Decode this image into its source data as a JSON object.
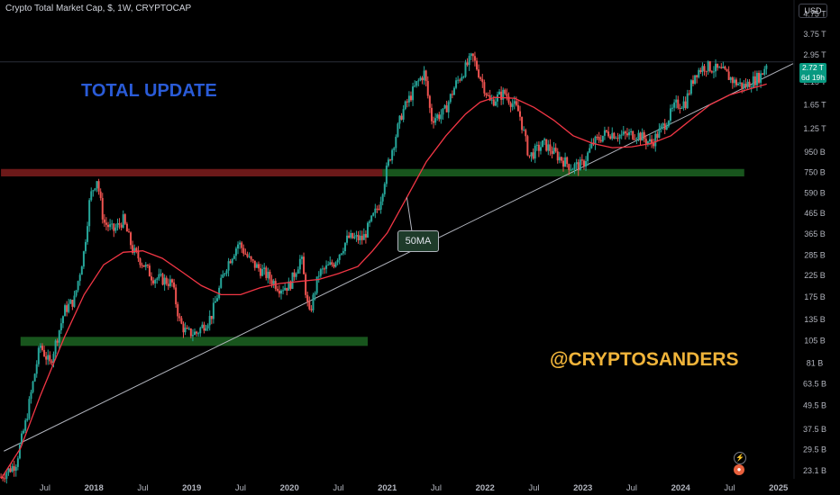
{
  "header": {
    "symbol_line": "Crypto Total Market Cap, $, 1W, CRYPTOCAP",
    "currency": "USD"
  },
  "price_badge": {
    "value": "2.72 T",
    "countdown": "6d 19h"
  },
  "overlays": {
    "title": "TOTAL UPDATE",
    "handle": "@CRYPTOSANDERS",
    "ma_callout": "50MA"
  },
  "icons": [
    "lightning-icon",
    "earnings-icon"
  ],
  "colors": {
    "background": "#000000",
    "up": "#26a69a",
    "down": "#ef5350",
    "ma": "#f23645",
    "support_zone": "#1b5e20",
    "resistance_zone": "#7f1d1d",
    "title": "#2a5bd7",
    "handle": "#f0b43a"
  },
  "chart_data": {
    "type": "candlestick",
    "title": "Crypto Total Market Cap",
    "y_scale": "log",
    "ylim": [
      21000000000,
      5600000000000
    ],
    "y_ticks": [
      {
        "v": 4750000000000,
        "label": "4.75 T"
      },
      {
        "v": 3750000000000,
        "label": "3.75 T"
      },
      {
        "v": 2950000000000,
        "label": "2.95 T"
      },
      {
        "v": 2150000000000,
        "label": "2.15 T"
      },
      {
        "v": 1650000000000,
        "label": "1.65 T"
      },
      {
        "v": 1250000000000,
        "label": "1.25 T"
      },
      {
        "v": 950000000000,
        "label": "950 B"
      },
      {
        "v": 750000000000,
        "label": "750 B"
      },
      {
        "v": 590000000000,
        "label": "590 B"
      },
      {
        "v": 465000000000,
        "label": "465 B"
      },
      {
        "v": 365000000000,
        "label": "365 B"
      },
      {
        "v": 285000000000,
        "label": "285 B"
      },
      {
        "v": 225000000000,
        "label": "225 B"
      },
      {
        "v": 175000000000,
        "label": "175 B"
      },
      {
        "v": 135000000000,
        "label": "135 B"
      },
      {
        "v": 105000000000,
        "label": "105 B"
      },
      {
        "v": 81000000000,
        "label": "81 B"
      },
      {
        "v": 63500000000,
        "label": "63.5 B"
      },
      {
        "v": 49500000000,
        "label": "49.5 B"
      },
      {
        "v": 37500000000,
        "label": "37.5 B"
      },
      {
        "v": 29500000000,
        "label": "29.5 B"
      },
      {
        "v": 23100000000,
        "label": "23.1 B"
      }
    ],
    "x_ticks": [
      {
        "t": 2017.5,
        "label": "Jul"
      },
      {
        "t": 2018.0,
        "label": "2018"
      },
      {
        "t": 2018.5,
        "label": "Jul"
      },
      {
        "t": 2019.0,
        "label": "2019"
      },
      {
        "t": 2019.5,
        "label": "Jul"
      },
      {
        "t": 2020.0,
        "label": "2020"
      },
      {
        "t": 2020.5,
        "label": "Jul"
      },
      {
        "t": 2021.0,
        "label": "2021"
      },
      {
        "t": 2021.5,
        "label": "Jul"
      },
      {
        "t": 2022.0,
        "label": "2022"
      },
      {
        "t": 2022.5,
        "label": "Jul"
      },
      {
        "t": 2023.0,
        "label": "2023"
      },
      {
        "t": 2023.5,
        "label": "Jul"
      },
      {
        "t": 2024.0,
        "label": "2024"
      },
      {
        "t": 2024.5,
        "label": "Jul"
      },
      {
        "t": 2025.0,
        "label": "2025"
      }
    ],
    "xlim": [
      2017.04,
      2025.15
    ],
    "price_path": [
      [
        2017.05,
        21500000000.0
      ],
      [
        2017.2,
        25000000000.0
      ],
      [
        2017.3,
        40000000000.0
      ],
      [
        2017.45,
        100000000000.0
      ],
      [
        2017.55,
        80000000000.0
      ],
      [
        2017.7,
        150000000000.0
      ],
      [
        2017.8,
        170000000000.0
      ],
      [
        2017.9,
        300000000000.0
      ],
      [
        2017.96,
        560000000000.0
      ],
      [
        2018.03,
        700000000000.0
      ],
      [
        2018.1,
        420000000000.0
      ],
      [
        2018.2,
        380000000000.0
      ],
      [
        2018.3,
        430000000000.0
      ],
      [
        2018.4,
        300000000000.0
      ],
      [
        2018.5,
        260000000000.0
      ],
      [
        2018.6,
        220000000000.0
      ],
      [
        2018.7,
        215000000000.0
      ],
      [
        2018.8,
        205000000000.0
      ],
      [
        2018.88,
        130000000000.0
      ],
      [
        2018.95,
        115000000000.0
      ],
      [
        2019.05,
        115000000000.0
      ],
      [
        2019.2,
        140000000000.0
      ],
      [
        2019.35,
        250000000000.0
      ],
      [
        2019.48,
        330000000000.0
      ],
      [
        2019.6,
        265000000000.0
      ],
      [
        2019.75,
        230000000000.0
      ],
      [
        2019.9,
        195000000000.0
      ],
      [
        2020.0,
        200000000000.0
      ],
      [
        2020.12,
        280000000000.0
      ],
      [
        2020.2,
        140000000000.0
      ],
      [
        2020.3,
        230000000000.0
      ],
      [
        2020.45,
        260000000000.0
      ],
      [
        2020.6,
        350000000000.0
      ],
      [
        2020.75,
        345000000000.0
      ],
      [
        2020.92,
        520000000000.0
      ],
      [
        2021.0,
        800000000000.0
      ],
      [
        2021.15,
        1500000000000.0
      ],
      [
        2021.3,
        2100000000000.0
      ],
      [
        2021.38,
        2400000000000.0
      ],
      [
        2021.45,
        1400000000000.0
      ],
      [
        2021.58,
        1500000000000.0
      ],
      [
        2021.7,
        2100000000000.0
      ],
      [
        2021.87,
        2900000000000.0
      ],
      [
        2021.95,
        2300000000000.0
      ],
      [
        2022.05,
        1700000000000.0
      ],
      [
        2022.2,
        1900000000000.0
      ],
      [
        2022.35,
        1500000000000.0
      ],
      [
        2022.45,
        900000000000.0
      ],
      [
        2022.6,
        1050000000000.0
      ],
      [
        2022.75,
        900000000000.0
      ],
      [
        2022.88,
        800000000000.0
      ],
      [
        2023.0,
        820000000000.0
      ],
      [
        2023.1,
        1050000000000.0
      ],
      [
        2023.25,
        1200000000000.0
      ],
      [
        2023.4,
        1150000000000.0
      ],
      [
        2023.55,
        1180000000000.0
      ],
      [
        2023.7,
        1050000000000.0
      ],
      [
        2023.85,
        1350000000000.0
      ],
      [
        2023.95,
        1650000000000.0
      ],
      [
        2024.05,
        1700000000000.0
      ],
      [
        2024.15,
        2400000000000.0
      ],
      [
        2024.25,
        2600000000000.0
      ],
      [
        2024.35,
        2500000000000.0
      ],
      [
        2024.45,
        2400000000000.0
      ],
      [
        2024.55,
        2150000000000.0
      ],
      [
        2024.65,
        2050000000000.0
      ],
      [
        2024.75,
        2200000000000.0
      ],
      [
        2024.83,
        2350000000000.0
      ],
      [
        2024.88,
        2720000000000.0
      ]
    ],
    "ma_path": [
      [
        2017.05,
        21000000000.0
      ],
      [
        2017.25,
        30000000000.0
      ],
      [
        2017.45,
        55000000000.0
      ],
      [
        2017.7,
        110000000000.0
      ],
      [
        2017.9,
        180000000000.0
      ],
      [
        2018.1,
        255000000000.0
      ],
      [
        2018.3,
        295000000000.0
      ],
      [
        2018.5,
        300000000000.0
      ],
      [
        2018.7,
        275000000000.0
      ],
      [
        2018.9,
        235000000000.0
      ],
      [
        2019.1,
        200000000000.0
      ],
      [
        2019.3,
        180000000000.0
      ],
      [
        2019.5,
        180000000000.0
      ],
      [
        2019.7,
        195000000000.0
      ],
      [
        2019.9,
        205000000000.0
      ],
      [
        2020.1,
        210000000000.0
      ],
      [
        2020.3,
        215000000000.0
      ],
      [
        2020.5,
        230000000000.0
      ],
      [
        2020.7,
        250000000000.0
      ],
      [
        2020.85,
        300000000000.0
      ],
      [
        2021.0,
        370000000000.0
      ],
      [
        2021.2,
        560000000000.0
      ],
      [
        2021.4,
        850000000000.0
      ],
      [
        2021.6,
        1150000000000.0
      ],
      [
        2021.8,
        1480000000000.0
      ],
      [
        2021.95,
        1700000000000.0
      ],
      [
        2022.1,
        1800000000000.0
      ],
      [
        2022.3,
        1780000000000.0
      ],
      [
        2022.5,
        1600000000000.0
      ],
      [
        2022.7,
        1380000000000.0
      ],
      [
        2022.9,
        1150000000000.0
      ],
      [
        2023.1,
        1050000000000.0
      ],
      [
        2023.3,
        1000000000000.0
      ],
      [
        2023.5,
        1010000000000.0
      ],
      [
        2023.7,
        1050000000000.0
      ],
      [
        2023.9,
        1150000000000.0
      ],
      [
        2024.1,
        1380000000000.0
      ],
      [
        2024.3,
        1650000000000.0
      ],
      [
        2024.5,
        1850000000000.0
      ],
      [
        2024.7,
        1980000000000.0
      ],
      [
        2024.88,
        2100000000000.0
      ]
    ],
    "support_zones": [
      {
        "from": 2017.25,
        "to": 2020.8,
        "low": 99000000000.0,
        "high": 110000000000.0
      },
      {
        "from": 2020.95,
        "to": 2024.65,
        "low": 715000000000.0,
        "high": 780000000000.0
      }
    ],
    "resistance_zones": [
      {
        "from": 2017.05,
        "to": 2020.95,
        "low": 715000000000.0,
        "high": 780000000000.0
      }
    ],
    "trendline": [
      [
        2017.08,
        29000000000.0
      ],
      [
        2025.0,
        2450000000000.0
      ]
    ],
    "current_price": 2720000000000.0
  }
}
